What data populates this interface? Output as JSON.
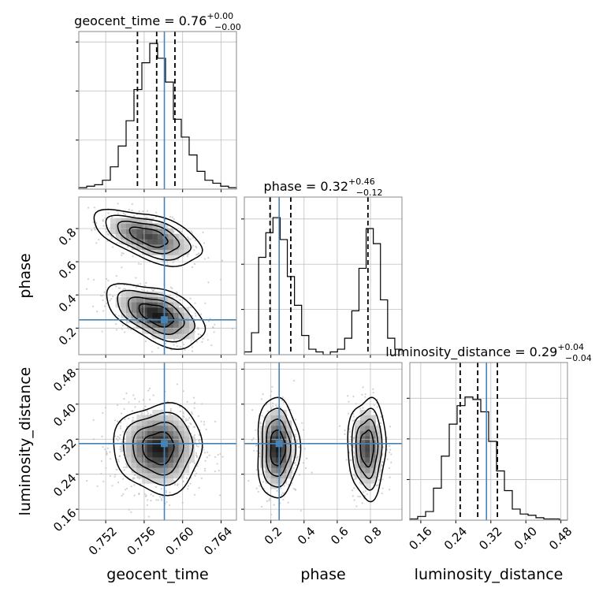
{
  "chart_data": {
    "type": "corner",
    "parameters": [
      "geocent_time",
      "phase",
      "luminosity_distance"
    ],
    "axis_labels": {
      "geocent_time": "geocent_time",
      "phase": "phase",
      "luminosity_distance": "luminosity_distance"
    },
    "ranges": {
      "geocent_time": [
        0.7492,
        0.7656
      ],
      "phase": [
        0.04,
        0.99
      ],
      "luminosity_distance": [
        0.135,
        0.495
      ]
    },
    "ticks": {
      "geocent_time": [
        "0.752",
        "0.756",
        "0.760",
        "0.764"
      ],
      "phase": [
        "0.2",
        "0.4",
        "0.6",
        "0.8"
      ],
      "luminosity_distance": [
        "0.16",
        "0.24",
        "0.32",
        "0.40",
        "0.48"
      ],
      "luminosity_distance_y": [
        "0.16",
        "0.24",
        "0.32",
        "0.40",
        "0.48"
      ],
      "phase_y": [
        "0.2",
        "0.4",
        "0.6",
        "0.8"
      ]
    },
    "titles": {
      "geocent_time": {
        "name": "geocent_time",
        "median": "0.76",
        "plus": "+0.00",
        "minus": "−0.00"
      },
      "phase": {
        "name": "phase",
        "median": "0.32",
        "plus": "+0.46",
        "minus": "−0.12"
      },
      "luminosity_distance": {
        "name": "luminosity_distance",
        "median": "0.29",
        "plus": "+0.04",
        "minus": "−0.04"
      }
    },
    "truths": {
      "geocent_time": 0.7581,
      "phase": 0.25,
      "luminosity_distance": 0.31
    },
    "quantiles": {
      "geocent_time": [
        0.7553,
        0.7573,
        0.7592
      ],
      "phase": [
        0.195,
        0.32,
        0.785
      ],
      "luminosity_distance": [
        0.25,
        0.29,
        0.335
      ]
    },
    "histograms": {
      "geocent_time": [
        0.01,
        0.02,
        0.03,
        0.06,
        0.15,
        0.29,
        0.46,
        0.67,
        0.85,
        0.98,
        0.88,
        0.72,
        0.47,
        0.35,
        0.23,
        0.12,
        0.06,
        0.04,
        0.02,
        0.01
      ],
      "phase": [
        0.02,
        0.16,
        0.71,
        0.89,
        1.0,
        0.84,
        0.57,
        0.36,
        0.14,
        0.04,
        0.02,
        0.0,
        0.02,
        0.04,
        0.12,
        0.32,
        0.63,
        0.92,
        0.81,
        0.4,
        0.12,
        0.04
      ],
      "luminosity_distance": [
        0.01,
        0.03,
        0.07,
        0.26,
        0.52,
        0.78,
        0.93,
        1.0,
        0.98,
        0.88,
        0.64,
        0.4,
        0.24,
        0.09,
        0.05,
        0.04,
        0.02,
        0.01,
        0.01,
        0.0
      ]
    },
    "hist_ymax": {
      "geocent_time": 1.06,
      "phase": 1.15,
      "luminosity_distance": 1.28
    },
    "modes": {
      "geocent_time": [
        {
          "mu": 0.7575,
          "sigma": 0.00185,
          "w": 1.0
        }
      ],
      "phase": [
        {
          "mu": 0.25,
          "sigma": 0.08,
          "w": 0.56
        },
        {
          "mu": 0.78,
          "sigma": 0.08,
          "w": 0.44
        }
      ],
      "luminosity_distance": [
        {
          "mu": 0.295,
          "sigma": 0.035,
          "w": 1.0
        }
      ]
    },
    "pair_modes": {
      "geocent_time|phase": [
        {
          "mx": 0.7565,
          "my": 0.75,
          "sx": 0.0022,
          "sy": 0.065,
          "rho": -0.55,
          "w": 0.44
        },
        {
          "mx": 0.7573,
          "my": 0.28,
          "sx": 0.002,
          "sy": 0.075,
          "rho": -0.5,
          "w": 0.56
        }
      ],
      "geocent_time|luminosity_distance": [
        {
          "mx": 0.7575,
          "my": 0.3,
          "sx": 0.0018,
          "sy": 0.04,
          "rho": 0.0,
          "w": 1.0
        }
      ],
      "phase|luminosity_distance": [
        {
          "mx": 0.24,
          "my": 0.3,
          "sx": 0.05,
          "sy": 0.045,
          "rho": 0.0,
          "w": 0.56
        },
        {
          "mx": 0.78,
          "my": 0.3,
          "sx": 0.045,
          "sy": 0.045,
          "rho": 0.0,
          "w": 0.44
        }
      ]
    },
    "grid": true,
    "colors": {
      "truth": "#4682b4",
      "hist": "#000000",
      "grid": "#c0c0c0",
      "points": "#9a9a9a"
    }
  }
}
